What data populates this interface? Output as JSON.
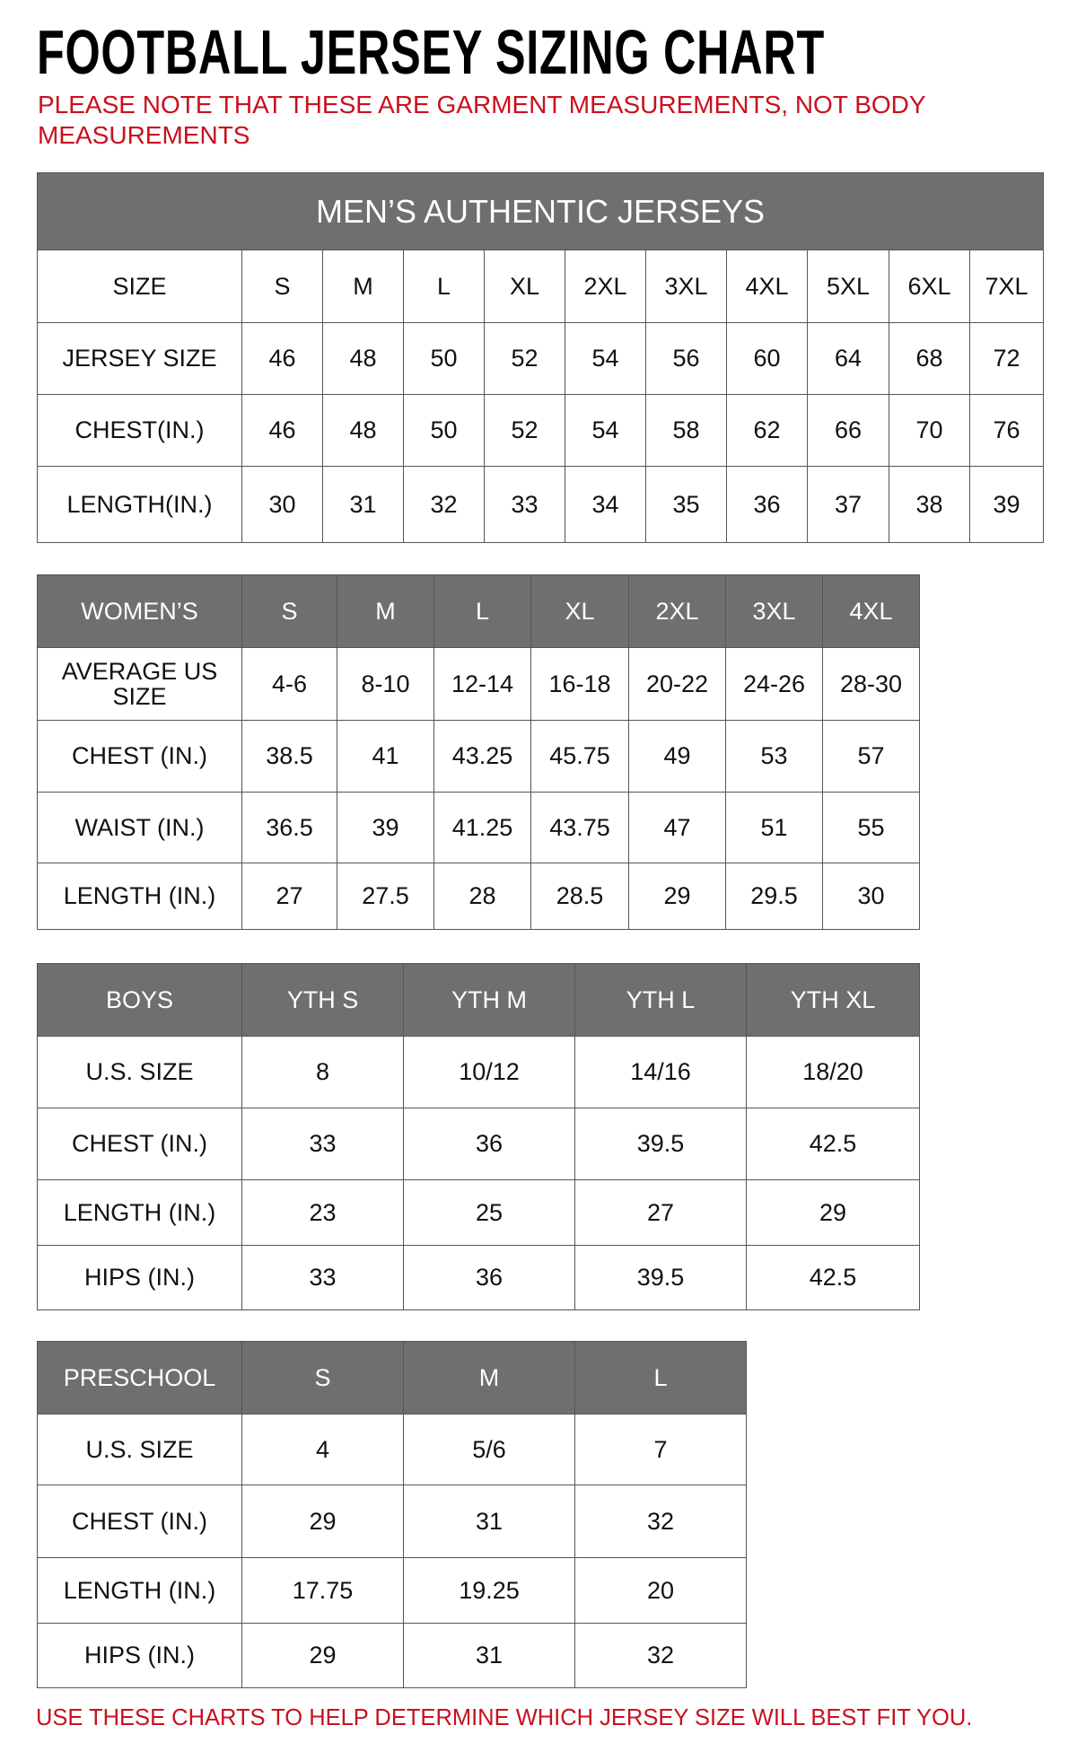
{
  "title": "FOOTBALL JERSEY SIZING CHART",
  "note": "PLEASE NOTE THAT THESE ARE GARMENT MEASUREMENTS, NOT BODY MEASUREMENTS",
  "footer": "USE THESE CHARTS TO HELP DETERMINE WHICH JERSEY SIZE WILL BEST FIT YOU.",
  "colors": {
    "header_bg": "#6f6f6f",
    "note_red": "#c8101e"
  },
  "tables": [
    {
      "id": "mens",
      "banner": "MEN’S AUTHENTIC JERSEYS",
      "header": [
        "SIZE",
        "S",
        "M",
        "L",
        "XL",
        "2XL",
        "3XL",
        "4XL",
        "5XL",
        "6XL",
        "7XL"
      ],
      "header_style": "plain",
      "rows": [
        [
          "JERSEY SIZE",
          "46",
          "48",
          "50",
          "52",
          "54",
          "56",
          "60",
          "64",
          "68",
          "72"
        ],
        [
          "CHEST(IN.)",
          "46",
          "48",
          "50",
          "52",
          "54",
          "58",
          "62",
          "66",
          "70",
          "76"
        ],
        [
          "LENGTH(IN.)",
          "30",
          "31",
          "32",
          "33",
          "34",
          "35",
          "36",
          "37",
          "38",
          "39"
        ]
      ]
    },
    {
      "id": "womens",
      "header": [
        "WOMEN’S",
        "S",
        "M",
        "L",
        "XL",
        "2XL",
        "3XL",
        "4XL"
      ],
      "rows": [
        [
          "AVERAGE US SIZE",
          "4-6",
          "8-10",
          "12-14",
          "16-18",
          "20-22",
          "24-26",
          "28-30"
        ],
        [
          "CHEST (IN.)",
          "38.5",
          "41",
          "43.25",
          "45.75",
          "49",
          "53",
          "57"
        ],
        [
          "WAIST (IN.)",
          "36.5",
          "39",
          "41.25",
          "43.75",
          "47",
          "51",
          "55"
        ],
        [
          "LENGTH (IN.)",
          "27",
          "27.5",
          "28",
          "28.5",
          "29",
          "29.5",
          "30"
        ]
      ]
    },
    {
      "id": "boys",
      "header": [
        "BOYS",
        "YTH S",
        "YTH M",
        "YTH L",
        "YTH XL"
      ],
      "rows": [
        [
          "U.S. SIZE",
          "8",
          "10/12",
          "14/16",
          "18/20"
        ],
        [
          "CHEST (IN.)",
          "33",
          "36",
          "39.5",
          "42.5"
        ],
        [
          "LENGTH (IN.)",
          "23",
          "25",
          "27",
          "29"
        ],
        [
          "HIPS (IN.)",
          "33",
          "36",
          "39.5",
          "42.5"
        ]
      ]
    },
    {
      "id": "preschool",
      "header": [
        "PRESCHOOL",
        "S",
        "M",
        "L"
      ],
      "rows": [
        [
          "U.S. SIZE",
          "4",
          "5/6",
          "7"
        ],
        [
          "CHEST (IN.)",
          "29",
          "31",
          "32"
        ],
        [
          "LENGTH (IN.)",
          "17.75",
          "19.25",
          "20"
        ],
        [
          "HIPS (IN.)",
          "29",
          "31",
          "32"
        ]
      ]
    }
  ]
}
